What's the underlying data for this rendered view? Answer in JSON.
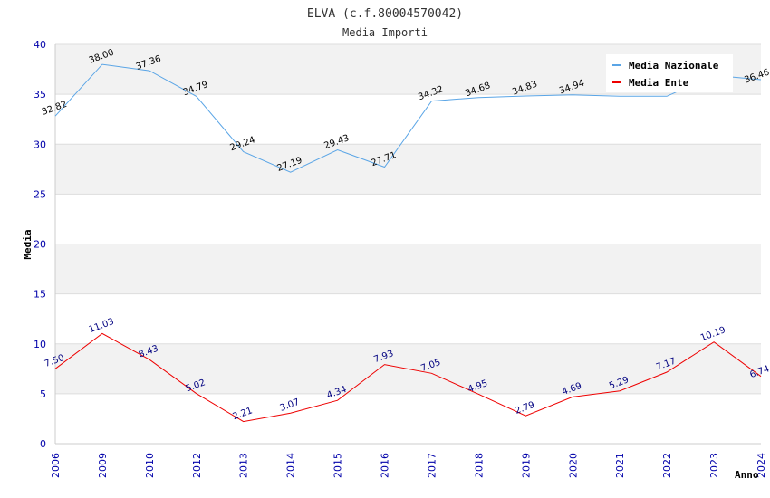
{
  "chart_data": {
    "type": "line",
    "title": "ELVA (c.f.80004570042)",
    "subtitle": "Media Importi",
    "xlabel": "Anno",
    "ylabel": "Media",
    "ylim": [
      0,
      40
    ],
    "yticks": [
      0,
      5,
      10,
      15,
      20,
      25,
      30,
      35,
      40
    ],
    "categories": [
      "2006",
      "2009",
      "2010",
      "2012",
      "2013",
      "2014",
      "2015",
      "2016",
      "2017",
      "2018",
      "2019",
      "2020",
      "2021",
      "2022",
      "2023",
      "2024"
    ],
    "legend_position": "top-right",
    "series": [
      {
        "name": "Media Nazionale",
        "color": "#5aa5e6",
        "label_color": "#000000",
        "values": [
          32.82,
          38.0,
          37.36,
          34.79,
          29.24,
          27.19,
          29.43,
          27.71,
          34.32,
          34.68,
          34.83,
          34.94,
          34.8,
          34.8,
          36.9,
          36.46
        ],
        "labels": [
          "32.82",
          "38.00",
          "37.36",
          "34.79",
          "29.24",
          "27.19",
          "29.43",
          "27.71",
          "34.32",
          "34.68",
          "34.83",
          "34.94",
          "",
          "",
          "",
          "36.46"
        ]
      },
      {
        "name": "Media Ente",
        "color": "#ee0000",
        "label_color": "#000080",
        "values": [
          7.5,
          11.03,
          8.43,
          5.02,
          2.21,
          3.07,
          4.34,
          7.93,
          7.05,
          4.95,
          2.79,
          4.69,
          5.29,
          7.17,
          10.19,
          6.74
        ],
        "labels": [
          "7.50",
          "11.03",
          "8.43",
          "5.02",
          "2.21",
          "3.07",
          "4.34",
          "7.93",
          "7.05",
          "4.95",
          "2.79",
          "4.69",
          "5.29",
          "7.17",
          "10.19",
          "6.74"
        ]
      }
    ]
  }
}
